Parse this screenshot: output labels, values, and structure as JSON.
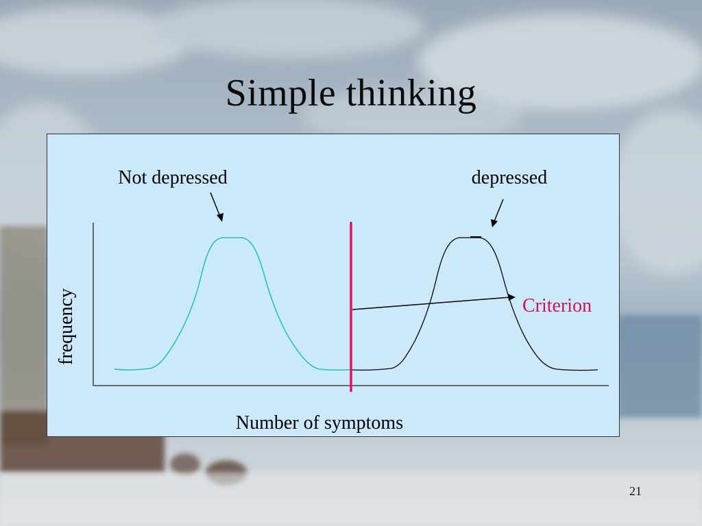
{
  "slide": {
    "title": "Simple thinking",
    "page_number": "21"
  },
  "diagram": {
    "label_not_depressed": "Not depressed",
    "label_depressed": "depressed",
    "label_criterion": "Criterion",
    "label_x_axis": "Number of symptoms",
    "label_y_axis": "frequency"
  },
  "colors": {
    "panel_fill": "#cce9fb",
    "not_depressed_curve": "#17c4b0",
    "depressed_curve": "#000000",
    "criterion_line": "#e0125e",
    "criterion_text": "#d0105a"
  }
}
